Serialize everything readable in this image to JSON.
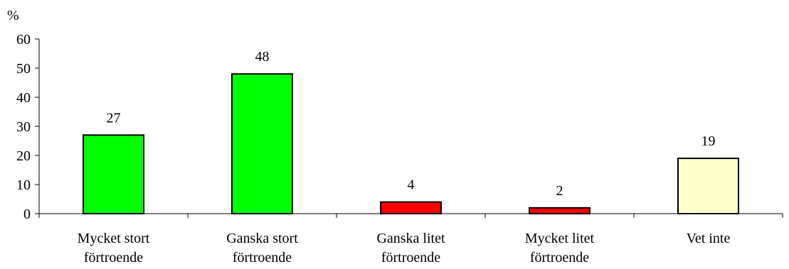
{
  "chart_data": {
    "type": "bar",
    "y_unit_label": "%",
    "categories": [
      [
        "Mycket stort",
        "förtroende"
      ],
      [
        "Ganska stort",
        "förtroende"
      ],
      [
        "Ganska litet",
        "förtroende"
      ],
      [
        "Mycket litet",
        "förtroende"
      ],
      [
        "Vet inte"
      ]
    ],
    "values": [
      27,
      48,
      4,
      2,
      19
    ],
    "bar_colors": [
      "#00ff00",
      "#00ff00",
      "#ff0000",
      "#ff0000",
      "#ffffcc"
    ],
    "ylim": [
      0,
      60
    ],
    "yticks": [
      0,
      10,
      20,
      30,
      40,
      50,
      60
    ],
    "grid": false,
    "legend": "none"
  }
}
